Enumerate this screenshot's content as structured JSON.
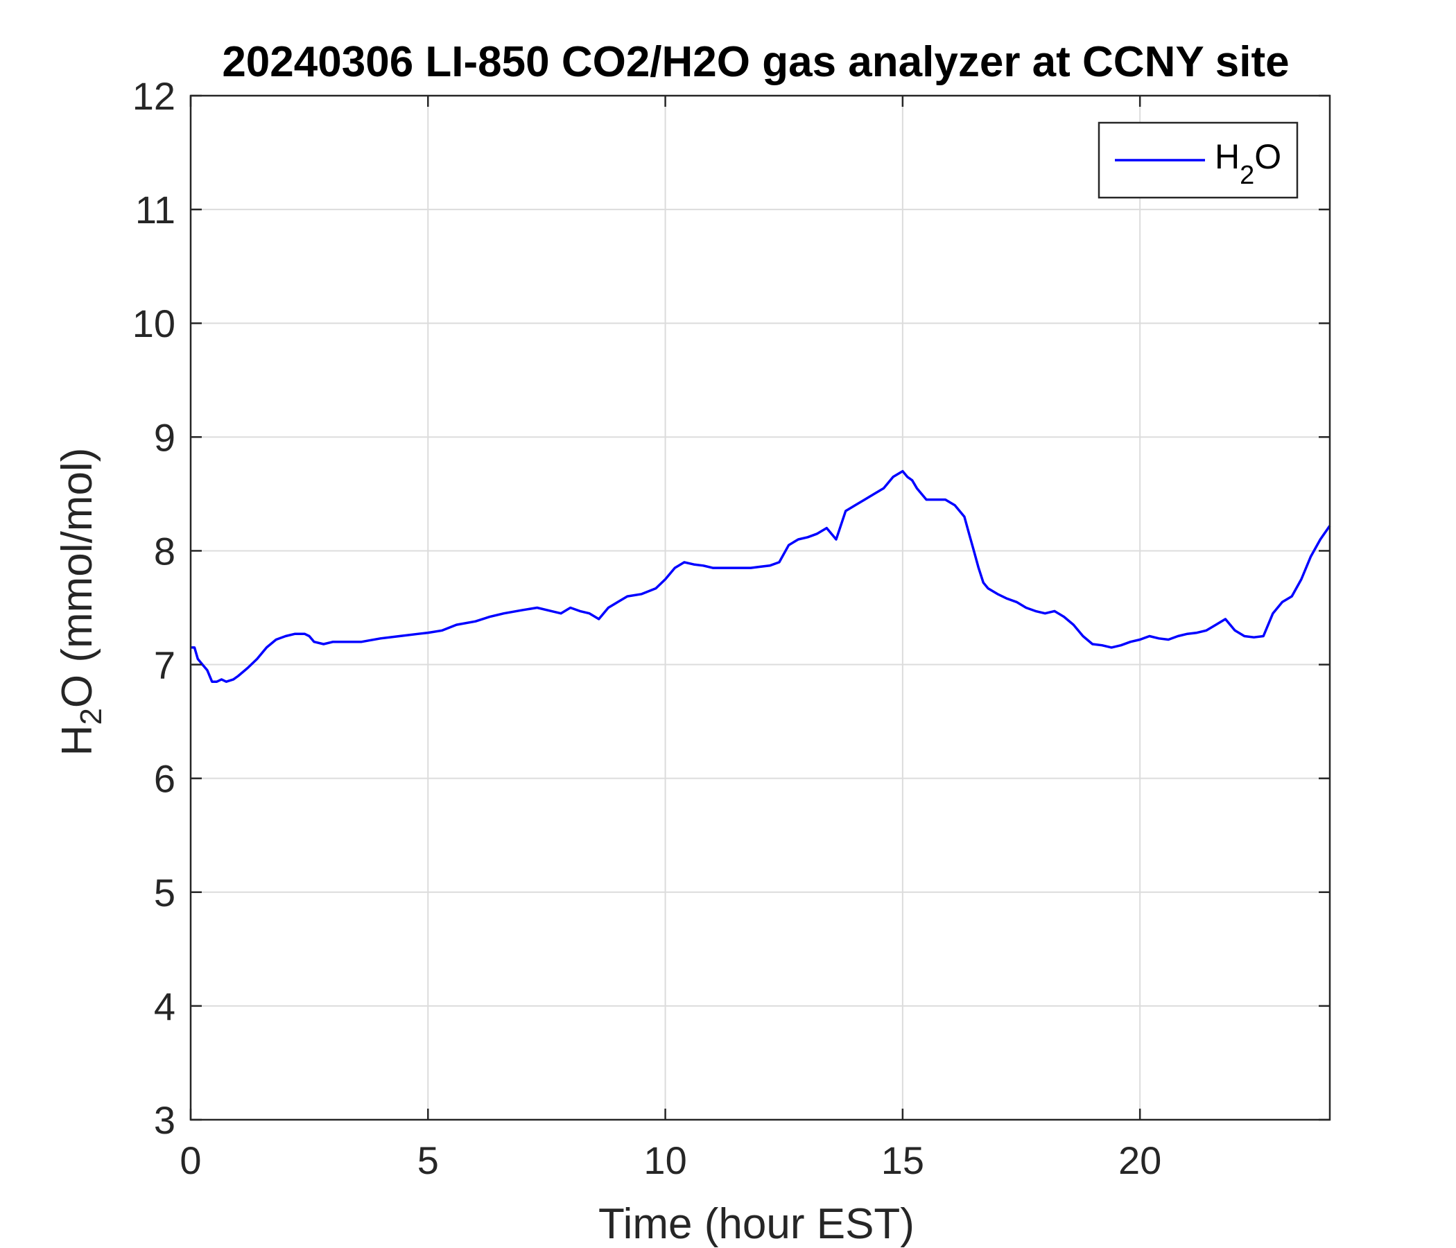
{
  "chart_data": {
    "type": "line",
    "title": "20240306 LI-850 CO2/H2O gas analyzer at CCNY site",
    "xlabel": "Time (hour EST)",
    "ylabel": {
      "pre": "H",
      "sub": "2",
      "post": "O (mmol/mol)"
    },
    "xlim": [
      0,
      24
    ],
    "ylim": [
      3,
      12
    ],
    "xticks": [
      0,
      5,
      10,
      15,
      20
    ],
    "yticks": [
      3,
      4,
      5,
      6,
      7,
      8,
      9,
      10,
      11,
      12
    ],
    "grid": true,
    "legend_position": "top-right",
    "legend": {
      "pre": "H",
      "sub": "2",
      "post": "O"
    },
    "series": [
      {
        "name": "H2O",
        "color": "#0000ff",
        "x": [
          0,
          0.08,
          0.15,
          0.25,
          0.35,
          0.45,
          0.55,
          0.65,
          0.75,
          0.9,
          1.0,
          1.2,
          1.4,
          1.6,
          1.8,
          2.0,
          2.2,
          2.4,
          2.5,
          2.6,
          2.8,
          3.0,
          3.3,
          3.6,
          4.0,
          4.4,
          4.8,
          5.0,
          5.3,
          5.6,
          6.0,
          6.3,
          6.6,
          7.0,
          7.3,
          7.6,
          7.8,
          8.0,
          8.2,
          8.4,
          8.6,
          8.8,
          9.0,
          9.2,
          9.5,
          9.8,
          10.0,
          10.2,
          10.4,
          10.6,
          10.8,
          11.0,
          11.2,
          11.5,
          11.8,
          12.0,
          12.2,
          12.4,
          12.6,
          12.8,
          13.0,
          13.2,
          13.4,
          13.6,
          13.8,
          14.0,
          14.2,
          14.4,
          14.6,
          14.8,
          15.0,
          15.1,
          15.2,
          15.3,
          15.5,
          15.7,
          15.9,
          16.1,
          16.3,
          16.4,
          16.5,
          16.6,
          16.7,
          16.8,
          17.0,
          17.2,
          17.4,
          17.6,
          17.8,
          18.0,
          18.2,
          18.4,
          18.6,
          18.8,
          19.0,
          19.2,
          19.4,
          19.6,
          19.8,
          20.0,
          20.2,
          20.4,
          20.6,
          20.8,
          21.0,
          21.2,
          21.4,
          21.6,
          21.8,
          22.0,
          22.2,
          22.4,
          22.6,
          22.8,
          23.0,
          23.2,
          23.4,
          23.6,
          23.8,
          24.0
        ],
        "values": [
          7.15,
          7.15,
          7.05,
          7.0,
          6.95,
          6.85,
          6.85,
          6.87,
          6.85,
          6.87,
          6.9,
          6.97,
          7.05,
          7.15,
          7.22,
          7.25,
          7.27,
          7.27,
          7.25,
          7.2,
          7.18,
          7.2,
          7.2,
          7.2,
          7.23,
          7.25,
          7.27,
          7.28,
          7.3,
          7.35,
          7.38,
          7.42,
          7.45,
          7.48,
          7.5,
          7.47,
          7.45,
          7.5,
          7.47,
          7.45,
          7.4,
          7.5,
          7.55,
          7.6,
          7.62,
          7.67,
          7.75,
          7.85,
          7.9,
          7.88,
          7.87,
          7.85,
          7.85,
          7.85,
          7.85,
          7.86,
          7.87,
          7.9,
          8.05,
          8.1,
          8.12,
          8.15,
          8.2,
          8.1,
          8.35,
          8.4,
          8.45,
          8.5,
          8.55,
          8.65,
          8.7,
          8.65,
          8.62,
          8.55,
          8.45,
          8.45,
          8.45,
          8.4,
          8.3,
          8.15,
          8.0,
          7.85,
          7.72,
          7.67,
          7.62,
          7.58,
          7.55,
          7.5,
          7.47,
          7.45,
          7.47,
          7.42,
          7.35,
          7.25,
          7.18,
          7.17,
          7.15,
          7.17,
          7.2,
          7.22,
          7.25,
          7.23,
          7.22,
          7.25,
          7.27,
          7.28,
          7.3,
          7.35,
          7.4,
          7.3,
          7.25,
          7.24,
          7.25,
          7.45,
          7.55,
          7.6,
          7.75,
          7.95,
          8.1,
          8.22
        ]
      }
    ]
  }
}
